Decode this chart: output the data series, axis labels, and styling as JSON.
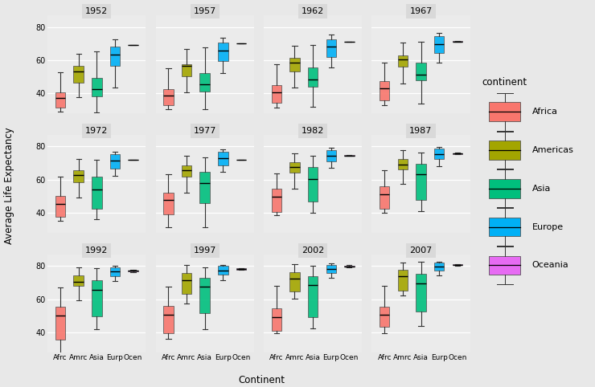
{
  "years": [
    1952,
    1957,
    1962,
    1967,
    1972,
    1977,
    1982,
    1987,
    1992,
    1997,
    2002,
    2007
  ],
  "continents": [
    "Africa",
    "Americas",
    "Asia",
    "Europe",
    "Oceania"
  ],
  "continent_colors": {
    "Africa": "#F8766D",
    "Americas": "#A3A500",
    "Asia": "#00BF7D",
    "Europe": "#00B0F6",
    "Oceania": "#E76BF3"
  },
  "xlabel": "Continent",
  "ylabel": "Average Life Expectancy",
  "legend_title": "continent",
  "xtick_labels": [
    "Afrc",
    "Amrc",
    "Asia",
    "Eurp",
    "Ocen"
  ],
  "outer_bg": "#E8E8E8",
  "panel_bg": "#EBEBEB",
  "strip_bg": "#D9D9D9",
  "grid_color": "white",
  "ylim": [
    28,
    87
  ],
  "yticks": [
    40,
    60,
    80
  ],
  "gapminder_data": {
    "1952": {
      "Africa": [
        30.0,
        35.8,
        38.83,
        41.4,
        52.7,
        29.0
      ],
      "Americas": [
        37.6,
        44.7,
        51.89,
        57.2,
        63.9,
        55.1
      ],
      "Asia": [
        28.8,
        37.5,
        44.87,
        50.9,
        65.4,
        39.9
      ],
      "Europe": [
        55.2,
        61.2,
        65.9,
        69.18,
        72.7,
        43.6
      ],
      "Oceania": [
        69.12,
        69.39
      ]
    },
    "1957": {
      "Africa": [
        31.6,
        37.2,
        40.59,
        43.4,
        55.1,
        30.3
      ],
      "Americas": [
        40.7,
        48.2,
        55.96,
        58.0,
        66.9,
        57.2
      ],
      "Asia": [
        30.3,
        40.3,
        47.79,
        53.7,
        67.8,
        42.9
      ],
      "Europe": [
        57.7,
        64.4,
        67.65,
        71.8,
        73.5,
        52.1
      ],
      "Oceania": [
        70.33,
        70.26
      ]
    },
    "1962": {
      "Africa": [
        32.8,
        38.9,
        42.27,
        46.0,
        57.7,
        31.6
      ],
      "Americas": [
        43.4,
        51.5,
        58.3,
        62.0,
        68.7,
        59.0
      ],
      "Asia": [
        32.0,
        44.0,
        51.56,
        57.3,
        69.4,
        45.1
      ],
      "Europe": [
        60.5,
        66.6,
        69.54,
        73.6,
        75.4,
        55.8
      ],
      "Oceania": [
        70.93,
        71.24
      ]
    },
    "1967": {
      "Africa": [
        34.0,
        41.0,
        44.8,
        48.5,
        58.5,
        33.0
      ],
      "Americas": [
        46.2,
        54.4,
        60.52,
        63.8,
        70.9,
        60.5
      ],
      "Asia": [
        34.0,
        47.8,
        54.66,
        60.0,
        71.4,
        47.8
      ],
      "Europe": [
        63.1,
        68.3,
        71.06,
        75.5,
        76.4,
        58.5
      ],
      "Oceania": [
        71.1,
        71.52
      ]
    },
    "1972": {
      "Africa": [
        35.4,
        43.6,
        47.45,
        51.0,
        61.6,
        35.0
      ],
      "Americas": [
        49.2,
        57.2,
        63.44,
        66.7,
        72.5,
        62.4
      ],
      "Asia": [
        36.1,
        51.3,
        57.32,
        63.5,
        72.0,
        39.3
      ],
      "Europe": [
        65.3,
        70.4,
        72.54,
        76.6,
        76.6,
        62.4
      ],
      "Oceania": [
        71.93,
        71.89
      ]
    },
    "1977": {
      "Africa": [
        36.8,
        46.0,
        49.58,
        52.9,
        63.2,
        31.2
      ],
      "Americas": [
        52.1,
        60.8,
        66.35,
        69.3,
        74.2,
        65.0
      ],
      "Asia": [
        31.2,
        54.9,
        60.77,
        66.1,
        73.5,
        42.9
      ],
      "Europe": [
        67.6,
        72.4,
        74.0,
        77.5,
        78.2,
        64.6
      ],
      "Oceania": [
        72.22,
        72.0
      ]
    },
    "1982": {
      "Africa": [
        38.4,
        47.4,
        51.59,
        55.5,
        64.0,
        38.4
      ],
      "Americas": [
        54.7,
        63.3,
        68.56,
        71.3,
        75.8,
        66.8
      ],
      "Asia": [
        39.9,
        57.5,
        63.74,
        68.7,
        74.5,
        43.2
      ],
      "Europe": [
        69.9,
        73.8,
        75.24,
        78.8,
        79.4,
        67.0
      ],
      "Oceania": [
        74.74,
        74.45
      ]
    },
    "1987": {
      "Africa": [
        40.0,
        49.5,
        53.34,
        57.2,
        65.8,
        40.0
      ],
      "Americas": [
        57.3,
        65.8,
        70.77,
        73.2,
        77.9,
        67.8
      ],
      "Asia": [
        40.8,
        60.0,
        66.3,
        70.4,
        76.3,
        44.0
      ],
      "Europe": [
        71.5,
        74.8,
        76.42,
        79.4,
        79.8,
        68.3
      ],
      "Oceania": [
        76.32,
        75.32
      ]
    },
    "1992": {
      "Africa": [
        23.6,
        47.5,
        52.43,
        56.5,
        66.9,
        31.5
      ],
      "Americas": [
        59.1,
        67.7,
        72.0,
        74.9,
        79.1,
        68.5
      ],
      "Asia": [
        41.7,
        62.5,
        68.69,
        72.0,
        78.6,
        45.5
      ],
      "Europe": [
        73.2,
        75.9,
        77.44,
        80.0,
        79.8,
        70.7
      ],
      "Oceania": [
        77.56,
        76.33
      ]
    },
    "1997": {
      "Africa": [
        36.1,
        48.5,
        52.76,
        57.1,
        67.7,
        36.1
      ],
      "Americas": [
        60.9,
        69.4,
        73.44,
        76.2,
        80.7,
        57.5
      ],
      "Asia": [
        41.8,
        64.6,
        70.26,
        73.9,
        79.2,
        47.1
      ],
      "Europe": [
        74.2,
        76.7,
        78.03,
        80.7,
        80.7,
        71.6
      ],
      "Oceania": [
        78.83,
        77.55
      ]
    },
    "2002": {
      "Africa": [
        39.2,
        46.6,
        51.24,
        55.6,
        68.0,
        39.2
      ],
      "Americas": [
        62.3,
        70.8,
        74.34,
        77.0,
        81.2,
        60.3
      ],
      "Asia": [
        42.1,
        65.7,
        71.03,
        74.8,
        80.0,
        43.9
      ],
      "Europe": [
        75.2,
        77.6,
        79.05,
        81.5,
        81.2,
        72.8
      ],
      "Oceania": [
        80.37,
        79.11
      ]
    },
    "2007": {
      "Africa": [
        39.6,
        47.8,
        52.93,
        56.5,
        68.0,
        42.1
      ],
      "Americas": [
        63.0,
        72.0,
        75.74,
        78.3,
        82.1,
        62.0
      ],
      "Asia": [
        43.8,
        66.8,
        72.4,
        76.0,
        82.6,
        47.8
      ],
      "Europe": [
        76.5,
        78.8,
        80.55,
        82.3,
        82.2,
        74.1
      ],
      "Oceania": [
        81.23,
        80.2
      ]
    }
  }
}
